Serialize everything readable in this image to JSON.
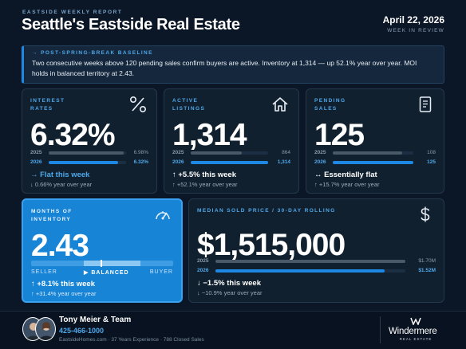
{
  "header": {
    "kicker": "EASTSIDE WEEKLY REPORT",
    "title": "Seattle's Eastside Real Estate",
    "date": "April 22, 2026",
    "subtitle": "WEEK IN REVIEW"
  },
  "banner": {
    "kicker": "→  POST-SPRING-BREAK BASELINE",
    "text": "Two consecutive weeks above 120 pending sales confirm buyers are active. Inventory at 1,314 — up 52.1% year over year. MOI holds in balanced territory at 2.43."
  },
  "cards": {
    "rates": {
      "label": "INTEREST RATES",
      "icon": "percent-icon",
      "value": "6.32%",
      "prev_year": "2025",
      "prev_value": "6.98%",
      "prev_fill": 0.97,
      "cur_year": "2026",
      "cur_value": "6.32%",
      "cur_fill": 0.9,
      "change": "→ Flat this week",
      "yoy": "↓ 0.66% year over year"
    },
    "listings": {
      "label": "ACTIVE LISTINGS",
      "icon": "house-icon",
      "value": "1,314",
      "prev_year": "2025",
      "prev_value": "864",
      "prev_fill": 0.66,
      "cur_year": "2026",
      "cur_value": "1,314",
      "cur_fill": 1.0,
      "change": "↑ +5.5% this week",
      "yoy": "↑ +52.1% year over year"
    },
    "pending": {
      "label": "PENDING SALES",
      "icon": "document-icon",
      "value": "125",
      "prev_year": "2025",
      "prev_value": "108",
      "prev_fill": 0.86,
      "cur_year": "2026",
      "cur_value": "125",
      "cur_fill": 1.0,
      "change": "↔ Essentially flat",
      "yoy": "↑ +15.7% year over year"
    },
    "moi": {
      "label": "MONTHS OF INVENTORY",
      "icon": "gauge-icon",
      "value": "2.43",
      "seller": "SELLER",
      "balanced": "▶ BALANCED",
      "buyer": "BUYER",
      "level": 0.49,
      "change": "↑ +8.1% this week",
      "yoy": "↑ +31.4% year over year"
    },
    "price": {
      "label": "MEDIAN SOLD PRICE  /  30-DAY ROLLING",
      "icon": "dollar-icon",
      "value": "$1,515,000",
      "prev_year": "2025",
      "prev_value": "$1.70M",
      "prev_fill": 1.0,
      "cur_year": "2026",
      "cur_value": "$1.52M",
      "cur_fill": 0.89,
      "change": "↓ −1.5% this week",
      "yoy": "↓ −10.9% year over year"
    }
  },
  "footer": {
    "name": "Tony Meier & Team",
    "phone": "425-466-1000",
    "meta": "EastsideHomes.com  ·  37 Years Experience  ·  788 Closed Sales",
    "brand": "Windermere",
    "brand_sub": "REAL ESTATE"
  },
  "colors": {
    "accent": "#1e88e5",
    "accent_light": "#4fa8ea",
    "bar_prev": "#4a5968",
    "bar_cur": "#1e88e5",
    "moi_card": "#1784d6"
  }
}
